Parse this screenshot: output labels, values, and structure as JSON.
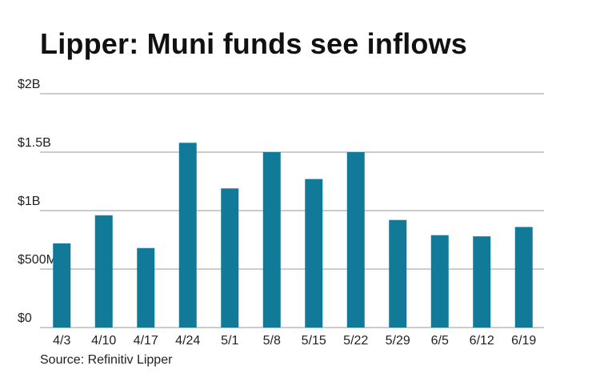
{
  "title": "Lipper: Muni funds see inflows",
  "source": "Source: Refinitiv Lipper",
  "colors": {
    "bar": "#117a99",
    "grid": "#9a9a9a",
    "text": "#222222"
  },
  "chart_data": {
    "type": "bar",
    "title": "Lipper: Muni funds see inflows",
    "categories": [
      "4/3",
      "4/10",
      "4/17",
      "4/24",
      "5/1",
      "5/8",
      "5/15",
      "5/22",
      "5/29",
      "6/5",
      "6/12",
      "6/19"
    ],
    "values": [
      0.72,
      0.96,
      0.68,
      1.58,
      1.19,
      1.5,
      1.27,
      1.5,
      0.92,
      0.79,
      0.78,
      0.86
    ],
    "value_unit": "billions of dollars",
    "ylim": [
      0,
      2
    ],
    "yticks": [
      0,
      0.5,
      1,
      1.5,
      2
    ],
    "ytick_labels": [
      "$0",
      "$500M",
      "$1B",
      "$1.5B",
      "$2B"
    ],
    "xlabel": "",
    "ylabel": "",
    "grid": true,
    "legend": "none"
  }
}
